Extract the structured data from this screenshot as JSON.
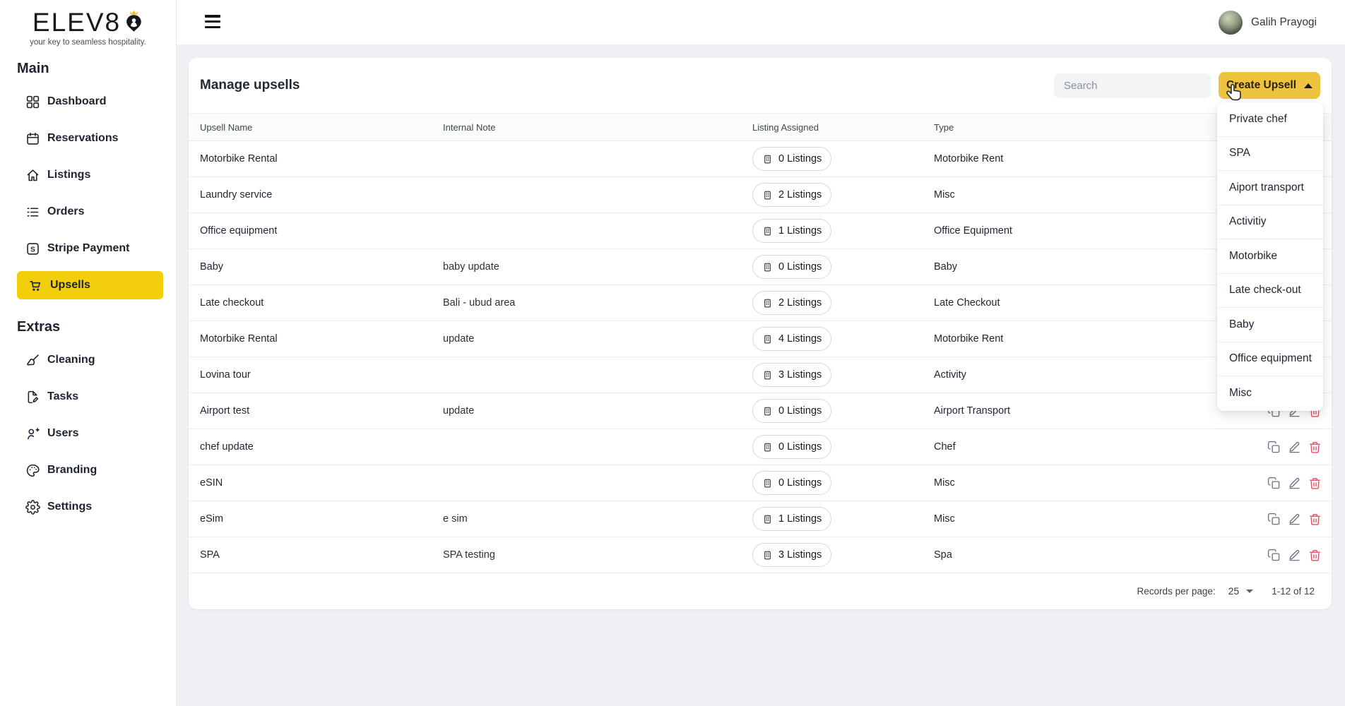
{
  "brand": {
    "name": "ELEV8",
    "tagline": "your key to seamless hospitality."
  },
  "topbar": {
    "user_name": "Galih Prayogi"
  },
  "sidebar": {
    "sections": [
      {
        "title": "Main",
        "items": [
          {
            "label": "Dashboard",
            "icon": "dashboard-icon",
            "active": false
          },
          {
            "label": "Reservations",
            "icon": "calendar-icon",
            "active": false
          },
          {
            "label": "Listings",
            "icon": "home-icon",
            "active": false
          },
          {
            "label": "Orders",
            "icon": "list-icon",
            "active": false
          },
          {
            "label": "Stripe Payment",
            "icon": "stripe-icon",
            "active": false
          },
          {
            "label": "Upsells",
            "icon": "cart-icon",
            "active": true
          }
        ]
      },
      {
        "title": "Extras",
        "items": [
          {
            "label": "Cleaning",
            "icon": "broom-icon",
            "active": false
          },
          {
            "label": "Tasks",
            "icon": "tasks-icon",
            "active": false
          },
          {
            "label": "Users",
            "icon": "user-plus-icon",
            "active": false
          },
          {
            "label": "Branding",
            "icon": "palette-icon",
            "active": false
          },
          {
            "label": "Settings",
            "icon": "gear-icon",
            "active": false
          }
        ]
      }
    ]
  },
  "page": {
    "title": "Manage upsells",
    "search_placeholder": "Search",
    "create_button": "Create Upsell"
  },
  "dropdown": {
    "items": [
      "Private chef",
      "SPA",
      "Aiport transport",
      "Activitiy",
      "Motorbike",
      "Late check-out",
      "Baby",
      "Office equipment",
      "Misc"
    ]
  },
  "table": {
    "columns": [
      "Upsell Name",
      "Internal Note",
      "Listing Assigned",
      "Type"
    ],
    "rows": [
      {
        "name": "Motorbike Rental",
        "note": "",
        "listings": "0 Listings",
        "type": "Motorbike Rent"
      },
      {
        "name": "Laundry service",
        "note": "",
        "listings": "2 Listings",
        "type": "Misc"
      },
      {
        "name": "Office equipment",
        "note": "",
        "listings": "1 Listings",
        "type": "Office Equipment"
      },
      {
        "name": "Baby",
        "note": "baby update",
        "listings": "0 Listings",
        "type": "Baby"
      },
      {
        "name": "Late checkout",
        "note": "Bali - ubud area",
        "listings": "2 Listings",
        "type": "Late Checkout"
      },
      {
        "name": "Motorbike Rental",
        "note": "update",
        "listings": "4 Listings",
        "type": "Motorbike Rent"
      },
      {
        "name": "Lovina tour",
        "note": "",
        "listings": "3 Listings",
        "type": "Activity"
      },
      {
        "name": "Airport test",
        "note": "update",
        "listings": "0 Listings",
        "type": "Airport Transport"
      },
      {
        "name": "chef update",
        "note": "",
        "listings": "0 Listings",
        "type": "Chef"
      },
      {
        "name": "eSIN",
        "note": "",
        "listings": "0 Listings",
        "type": "Misc"
      },
      {
        "name": "eSim",
        "note": "e sim",
        "listings": "1 Listings",
        "type": "Misc"
      },
      {
        "name": "SPA",
        "note": "SPA testing",
        "listings": "3 Listings",
        "type": "Spa"
      }
    ]
  },
  "footer": {
    "records_label": "Records per page:",
    "records_value": "25",
    "range": "1-12 of 12"
  },
  "colors": {
    "sidebar_active_yellow": "#F2CE0B",
    "button_yellow": "#EEC43E",
    "danger_red": "#E14D62",
    "crown_gold": "#F1B90C"
  }
}
